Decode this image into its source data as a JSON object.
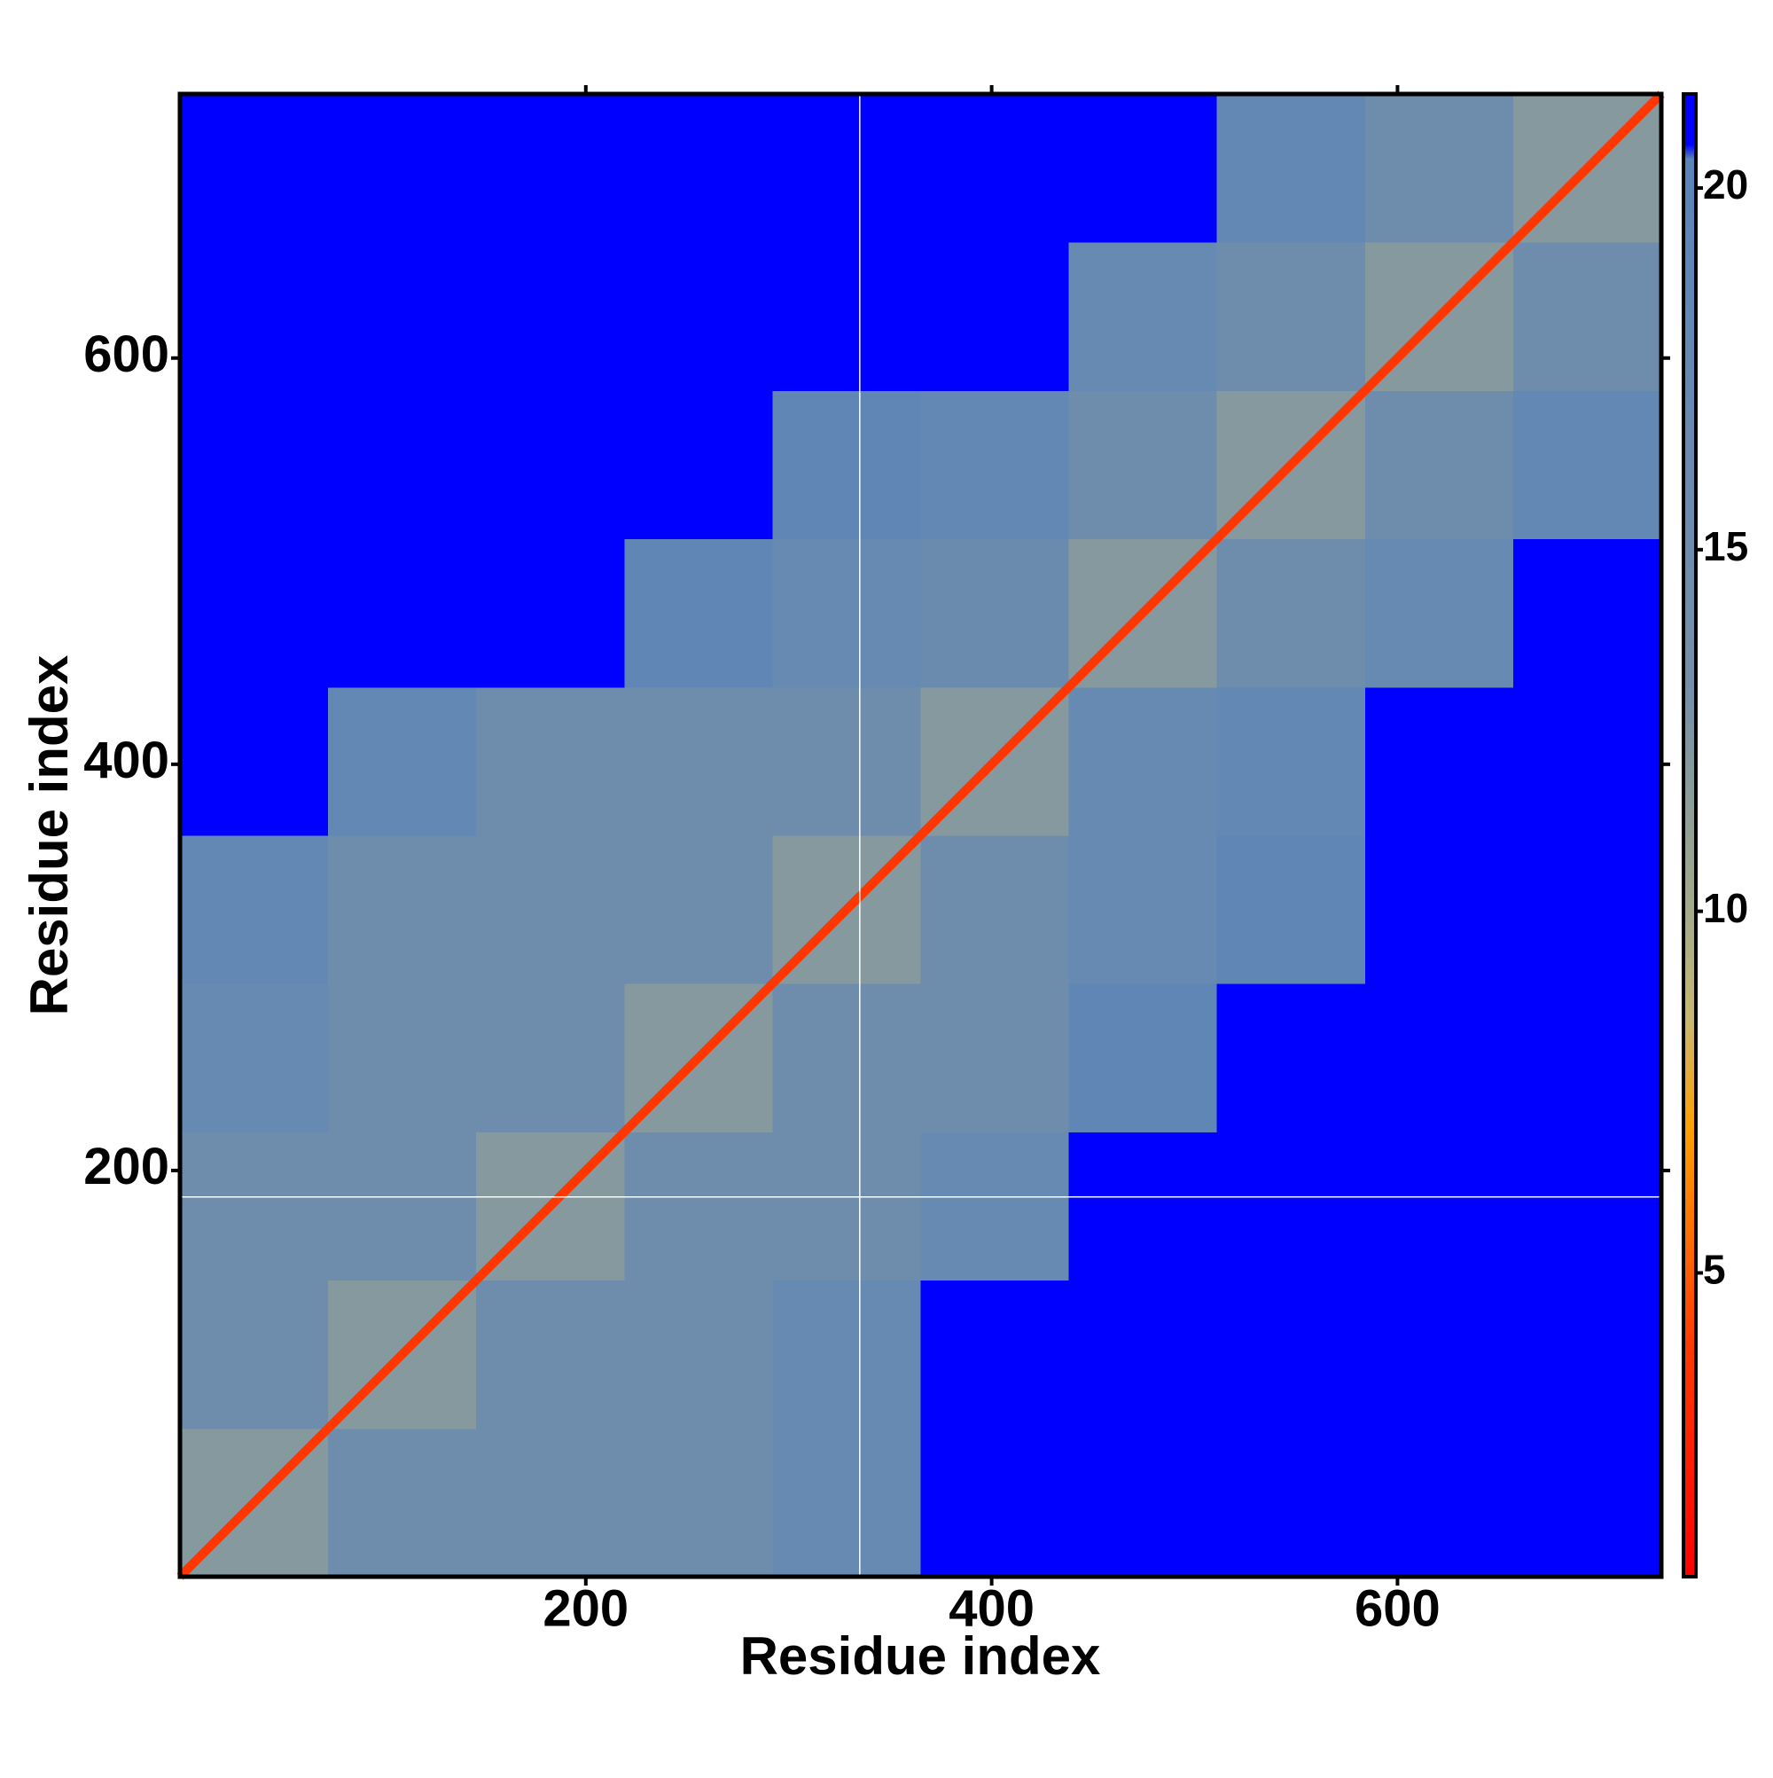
{
  "chart_data": {
    "type": "heatmap",
    "x_label": "Residue index",
    "y_label": "Residue index",
    "xlim": [
      0,
      730
    ],
    "ylim": [
      0,
      730
    ],
    "xticks": [
      200,
      400,
      600
    ],
    "yticks": [
      200,
      400,
      600
    ],
    "bins": [
      0,
      73,
      146,
      219,
      292,
      365,
      438,
      511,
      584,
      657,
      730
    ],
    "values": [
      [
        12,
        15,
        15,
        15,
        17,
        21,
        21,
        21,
        21,
        21
      ],
      [
        15,
        12,
        15,
        15,
        17,
        21,
        21,
        21,
        21,
        21
      ],
      [
        15,
        15,
        12,
        15,
        15,
        17,
        21,
        21,
        21,
        21
      ],
      [
        17,
        15,
        15,
        12,
        15,
        15,
        19,
        21,
        21,
        21
      ],
      [
        18,
        15,
        15,
        15,
        12,
        15,
        17,
        19,
        21,
        21
      ],
      [
        21,
        18,
        15,
        15,
        15,
        12,
        17,
        18,
        21,
        21
      ],
      [
        21,
        21,
        21,
        19,
        17,
        16,
        12,
        15,
        17,
        21
      ],
      [
        21,
        21,
        21,
        21,
        19,
        18,
        15,
        12,
        15,
        18
      ],
      [
        21,
        21,
        21,
        21,
        21,
        21,
        17,
        15,
        12,
        15
      ],
      [
        21,
        21,
        21,
        21,
        21,
        21,
        21,
        18,
        15,
        12
      ]
    ],
    "diagonal": 3.8,
    "vlines": [
      335
    ],
    "hlines": [
      187
    ],
    "clim": [
      0.8,
      21.3
    ],
    "cticks": [
      5,
      10,
      15,
      20
    ],
    "colorscale": [
      {
        "value": 0.8,
        "color": "#ff0000"
      },
      {
        "value": 4,
        "color": "#ff3a00"
      },
      {
        "value": 7,
        "color": "#ffa000"
      },
      {
        "value": 8.5,
        "color": "#c8b870"
      },
      {
        "value": 10,
        "color": "#a4ab8a"
      },
      {
        "value": 13,
        "color": "#7590a8"
      },
      {
        "value": 20.4,
        "color": "#5a84b8"
      },
      {
        "value": 20.6,
        "color": "#0000ff"
      },
      {
        "value": 21.3,
        "color": "#0000ff"
      }
    ]
  }
}
